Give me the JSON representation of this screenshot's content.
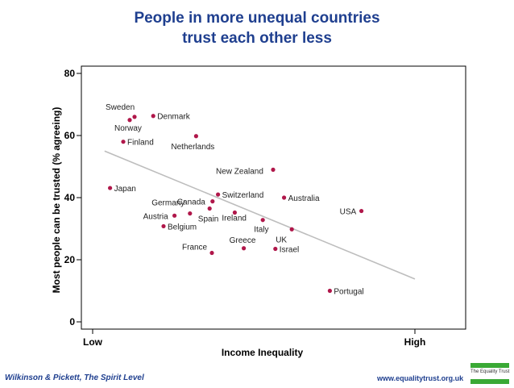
{
  "title_line1": "People in more unequal countries",
  "title_line2": "trust each other less",
  "footer_left": "Wilkinson & Pickett, The Spirit Level",
  "footer_right": "www.equalitytrust.org.uk",
  "logo_text": "The Equality Trust",
  "colors": {
    "title": "#1f3f8f",
    "point": "#b0174a",
    "trend": "#bdbdbd",
    "logo_green": "#3aa935"
  },
  "chart_data": {
    "type": "scatter",
    "xlabel": "Income Inequality",
    "ylabel": "Most people can be trusted (% agreeing)",
    "x_ticks": [
      "Low",
      "High"
    ],
    "y_ticks": [
      0,
      20,
      40,
      60,
      80
    ],
    "ylim": [
      0,
      80
    ],
    "xlim": [
      0,
      100
    ],
    "grid": false,
    "points": [
      {
        "label": "Sweden",
        "x": 13.0,
        "y": 66.0
      },
      {
        "label": "Norway",
        "x": 11.5,
        "y": 65.0
      },
      {
        "label": "Denmark",
        "x": 18.8,
        "y": 66.3
      },
      {
        "label": "Finland",
        "x": 9.5,
        "y": 58.0
      },
      {
        "label": "Netherlands",
        "x": 32.1,
        "y": 59.8
      },
      {
        "label": "Japan",
        "x": 5.4,
        "y": 43.1
      },
      {
        "label": "New Zealand",
        "x": 56.0,
        "y": 49.0
      },
      {
        "label": "Switzerland",
        "x": 38.9,
        "y": 41.0
      },
      {
        "label": "Canada",
        "x": 37.2,
        "y": 38.8
      },
      {
        "label": "Australia",
        "x": 59.4,
        "y": 40.0
      },
      {
        "label": "Germany",
        "x": 36.3,
        "y": 36.5
      },
      {
        "label": "Spain",
        "x": 30.2,
        "y": 34.9
      },
      {
        "label": "Austria",
        "x": 25.4,
        "y": 34.2
      },
      {
        "label": "Ireland",
        "x": 44.1,
        "y": 35.2
      },
      {
        "label": "USA",
        "x": 83.4,
        "y": 35.7
      },
      {
        "label": "Italy",
        "x": 52.8,
        "y": 32.8
      },
      {
        "label": "Belgium",
        "x": 22.0,
        "y": 30.8
      },
      {
        "label": "UK",
        "x": 61.8,
        "y": 29.8
      },
      {
        "label": "France",
        "x": 37.0,
        "y": 22.2
      },
      {
        "label": "Greece",
        "x": 46.9,
        "y": 23.7
      },
      {
        "label": "Israel",
        "x": 56.7,
        "y": 23.5
      },
      {
        "label": "Portugal",
        "x": 73.6,
        "y": 10.0
      }
    ],
    "trendline": {
      "x": [
        3.7,
        100.0
      ],
      "y": [
        55.0,
        13.8
      ]
    }
  }
}
